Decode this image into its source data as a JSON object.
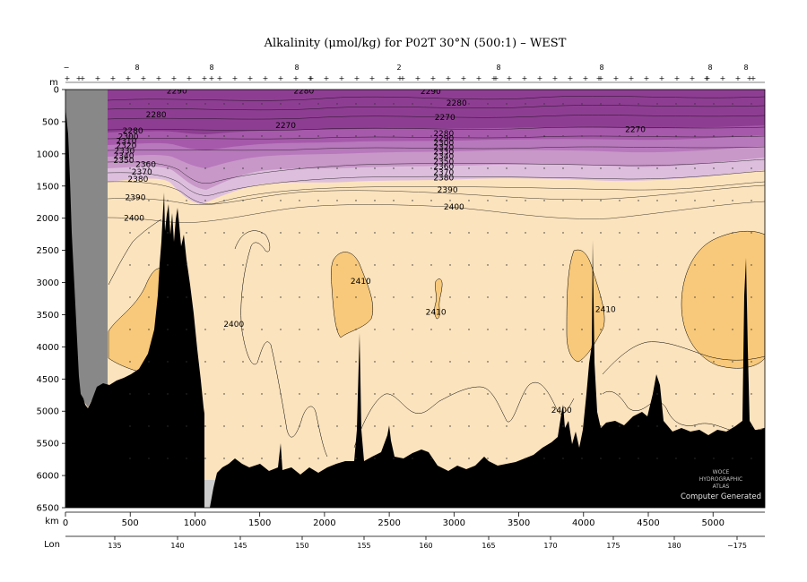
{
  "chart_data": {
    "type": "heatmap",
    "title": "Alkalinity (μmol/kg) for P02T 30°N (500:1) – WEST",
    "y_axis_label": "m",
    "x_axis_label": "km",
    "lon_axis_label": "Lon",
    "xlim_km": [
      0,
      5400
    ],
    "ylim_m": [
      0,
      6500
    ],
    "y_reversed": true,
    "y_ticks": [
      "0",
      "500",
      "1000",
      "1500",
      "2000",
      "2500",
      "3000",
      "3500",
      "4000",
      "4500",
      "5000",
      "5500",
      "6000",
      "6500"
    ],
    "x_ticks": [
      "0",
      "500",
      "1000",
      "1500",
      "2000",
      "2500",
      "3000",
      "3500",
      "4000",
      "4500",
      "5000"
    ],
    "lon_ticks": [
      "135",
      "140",
      "145",
      "150",
      "155",
      "160",
      "165",
      "170",
      "175",
      "180",
      "−175"
    ],
    "station_marks": [
      "−",
      "8",
      "8",
      "8",
      "2",
      "8",
      "8",
      "8",
      "8"
    ],
    "color_bands": [
      {
        "range": "< 2290",
        "color": "#8e3e92"
      },
      {
        "range": "2290–2330",
        "color": "#a659aa"
      },
      {
        "range": "2330–2350",
        "color": "#b878bc"
      },
      {
        "range": "2350–2370",
        "color": "#c898c8"
      },
      {
        "range": "2370–2390",
        "color": "#ddbfdd"
      },
      {
        "range": "2390–2410",
        "color": "#fbe3bd"
      },
      {
        "range": "> 2410",
        "color": "#f8c97a"
      }
    ],
    "land_color": "#888888",
    "bottom_color": "#000000",
    "contour_labels": [
      {
        "text": "2290",
        "km": 860,
        "depth": 20
      },
      {
        "text": "2280",
        "km": 1840,
        "depth": 20
      },
      {
        "text": "2290",
        "km": 2820,
        "depth": 30
      },
      {
        "text": "2280",
        "km": 3020,
        "depth": 210
      },
      {
        "text": "2280",
        "km": 700,
        "depth": 390
      },
      {
        "text": "2270",
        "km": 1700,
        "depth": 560
      },
      {
        "text": "2270",
        "km": 2930,
        "depth": 430
      },
      {
        "text": "2270",
        "km": 4400,
        "depth": 620
      },
      {
        "text": "2280",
        "km": 520,
        "depth": 640
      },
      {
        "text": "2300",
        "km": 485,
        "depth": 730
      },
      {
        "text": "2310",
        "km": 470,
        "depth": 800
      },
      {
        "text": "2320",
        "km": 470,
        "depth": 870
      },
      {
        "text": "2330",
        "km": 455,
        "depth": 950
      },
      {
        "text": "2340",
        "km": 450,
        "depth": 1030
      },
      {
        "text": "2350",
        "km": 450,
        "depth": 1100
      },
      {
        "text": "2280",
        "km": 2920,
        "depth": 680
      },
      {
        "text": "2290",
        "km": 2920,
        "depth": 760
      },
      {
        "text": "2300",
        "km": 2920,
        "depth": 830
      },
      {
        "text": "2320",
        "km": 2920,
        "depth": 900
      },
      {
        "text": "2330",
        "km": 2920,
        "depth": 970
      },
      {
        "text": "2340",
        "km": 2920,
        "depth": 1040
      },
      {
        "text": "2350",
        "km": 2920,
        "depth": 1120
      },
      {
        "text": "2360",
        "km": 2920,
        "depth": 1200
      },
      {
        "text": "2370",
        "km": 2920,
        "depth": 1290
      },
      {
        "text": "2380",
        "km": 2920,
        "depth": 1370
      },
      {
        "text": "2360",
        "km": 620,
        "depth": 1160
      },
      {
        "text": "2370",
        "km": 590,
        "depth": 1280
      },
      {
        "text": "2380",
        "km": 560,
        "depth": 1390
      },
      {
        "text": "2390",
        "km": 540,
        "depth": 1680
      },
      {
        "text": "2400",
        "km": 530,
        "depth": 2000
      },
      {
        "text": "2390",
        "km": 2950,
        "depth": 1560
      },
      {
        "text": "2400",
        "km": 3000,
        "depth": 1820
      },
      {
        "text": "2400",
        "km": 1300,
        "depth": 3650
      },
      {
        "text": "2410",
        "km": 2280,
        "depth": 2980
      },
      {
        "text": "2410",
        "km": 2860,
        "depth": 3460
      },
      {
        "text": "2410",
        "km": 4170,
        "depth": 3420
      },
      {
        "text": "2400",
        "km": 3830,
        "depth": 4980
      }
    ]
  },
  "watermark": {
    "line1": "WOCE",
    "line2": "HYDROGRAPHIC",
    "line3": "ATLAS",
    "line4": "Computer Generated"
  }
}
